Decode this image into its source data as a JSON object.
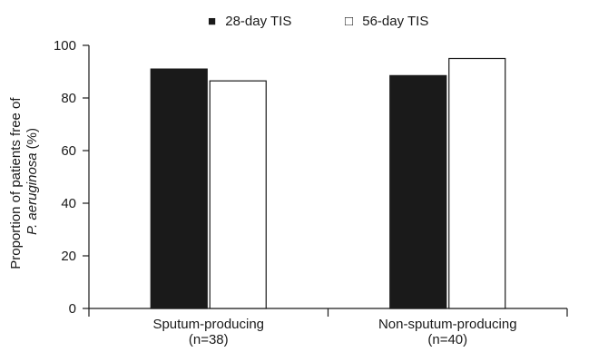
{
  "chart_data": {
    "type": "bar",
    "title": "",
    "categories": [
      "Sputum-producing (n=38)",
      "Non-sputum-producing (n=40)"
    ],
    "category_lines": [
      [
        "Sputum-producing",
        "(n=38)"
      ],
      [
        "Non-sputum-producing",
        "(n=40)"
      ]
    ],
    "series": [
      {
        "name": "28-day TIS",
        "values": [
          91,
          88.5
        ],
        "color": "#1a1a1a"
      },
      {
        "name": "56-day TIS",
        "values": [
          86.5,
          95
        ],
        "color": "#ffffff"
      }
    ],
    "legend": {
      "items": [
        {
          "symbol": "■",
          "label": "28-day TIS"
        },
        {
          "symbol": "□",
          "label": "56-day TIS"
        }
      ],
      "placement": "top-center"
    },
    "ylabel_lines": [
      "Proportion of patients free of",
      "P. aeruginosa",
      "(%)"
    ],
    "ylim": [
      0,
      100
    ],
    "yticks": [
      0,
      20,
      40,
      60,
      80,
      100
    ],
    "grid": false
  }
}
